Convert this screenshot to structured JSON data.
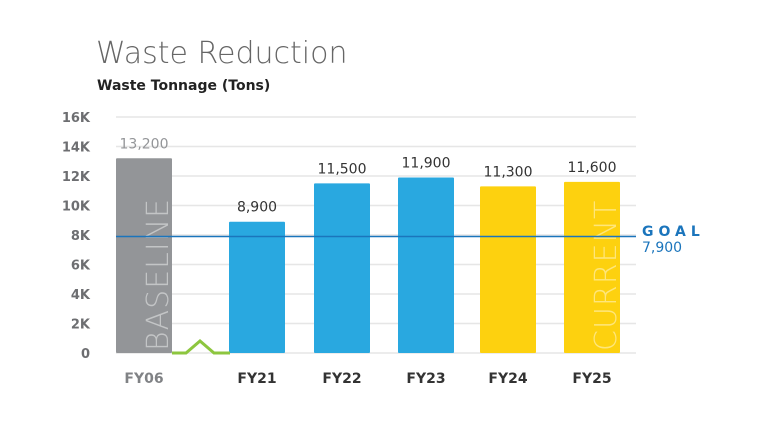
{
  "chart_data": {
    "type": "bar",
    "title": "Waste Reduction",
    "subtitle": "Waste Tonnage (Tons)",
    "categories": [
      "FY06",
      "FY21",
      "FY22",
      "FY23",
      "FY24",
      "FY25"
    ],
    "values": [
      13200,
      8900,
      11500,
      11900,
      11300,
      11600
    ],
    "value_labels": [
      "13,200",
      "8,900",
      "11,500",
      "11,900",
      "11,300",
      "11,600"
    ],
    "bar_colors": [
      "#939598",
      "#29a8e0",
      "#29a8e0",
      "#29a8e0",
      "#fdd10f",
      "#fdd10f"
    ],
    "bar_annotations": {
      "0": "BASELINE",
      "5": "CURRENT"
    },
    "yticks": [
      0,
      2000,
      4000,
      6000,
      8000,
      10000,
      12000,
      14000,
      16000
    ],
    "ytick_labels": [
      "0",
      "2K",
      "4K",
      "6K",
      "8K",
      "10K",
      "12K",
      "14K",
      "16K"
    ],
    "ylim": [
      0,
      16000
    ],
    "goal": {
      "label": "GOAL",
      "value": 7900,
      "value_label": "7,900",
      "color": "#1b75bc"
    },
    "axis_break_color": "#8dc63f",
    "grid": true
  }
}
